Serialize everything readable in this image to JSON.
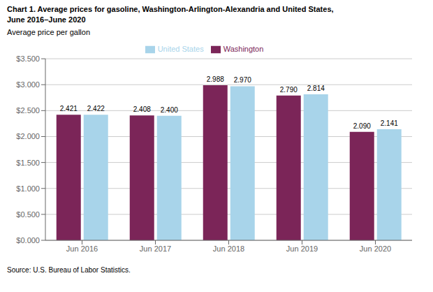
{
  "chart_data": {
    "type": "bar",
    "title": "Chart 1. Average prices for gasoline, Washington-Arlington-Alexandria and United States,\nJune 2016–June 2020",
    "subtitle": "Average price per gallon",
    "annotations": [
      "Source: U.S. Bureau of Labor Statistics."
    ],
    "categories": [
      "Jun 2016",
      "Jun 2017",
      "Jun 2018",
      "Jun 2019",
      "Jun 2020"
    ],
    "series": [
      {
        "name": "Washington",
        "color": "#7B2558",
        "values": [
          2.421,
          2.408,
          2.988,
          2.79,
          2.09
        ],
        "value_labels": [
          "2.421",
          "2.408",
          "2.988",
          "2.790",
          "2.090"
        ]
      },
      {
        "name": "United States",
        "color": "#A8D4EA",
        "values": [
          2.422,
          2.4,
          2.97,
          2.814,
          2.141
        ],
        "value_labels": [
          "2.422",
          "2.400",
          "2.970",
          "2.814",
          "2.141"
        ]
      }
    ],
    "ylim": [
      0.0,
      3.5
    ],
    "yticks": [
      {
        "value": 0.0,
        "label": "$0.000"
      },
      {
        "value": 0.5,
        "label": "$0.500"
      },
      {
        "value": 1.0,
        "label": "$1.000"
      },
      {
        "value": 1.5,
        "label": "$1.500"
      },
      {
        "value": 2.0,
        "label": "$2.000"
      },
      {
        "value": 2.5,
        "label": "$2.500"
      },
      {
        "value": 3.0,
        "label": "$3.000"
      },
      {
        "value": 3.5,
        "label": "$3.500"
      }
    ],
    "grid": true,
    "legend": "top",
    "data_labels": true
  }
}
